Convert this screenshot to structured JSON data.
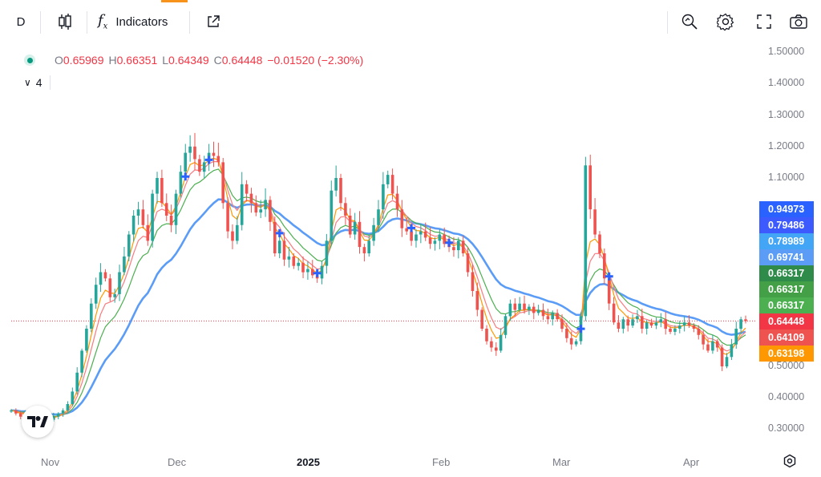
{
  "toolbar": {
    "interval": "D",
    "indicators_label": "Indicators",
    "icons": [
      "candles-icon",
      "fx-icon",
      "external-link-icon",
      "zoom-icon",
      "gear-icon",
      "fullscreen-icon",
      "camera-icon"
    ]
  },
  "legend": {
    "open_key": "O",
    "open": "0.65969",
    "high_key": "H",
    "high": "0.66351",
    "low_key": "L",
    "low": "0.64349",
    "close_key": "C",
    "close": "0.64448",
    "change": "−0.01520 (−2.30%)",
    "indicators_count": "4"
  },
  "price_tags": [
    {
      "value": "0.94973",
      "color": "#2962ff"
    },
    {
      "value": "0.79486",
      "color": "#3d5afe"
    },
    {
      "value": "0.78989",
      "color": "#42a5f5"
    },
    {
      "value": "0.69741",
      "color": "#5b9cf6"
    },
    {
      "value": "0.66317",
      "color": "#2e8b4a"
    },
    {
      "value": "0.66317",
      "color": "#43a047"
    },
    {
      "value": "0.66317",
      "color": "#4caf50"
    },
    {
      "value": "0.64448",
      "color": "#f23645"
    },
    {
      "value": "0.64109",
      "color": "#ef5350"
    },
    {
      "value": "0.63198",
      "color": "#ff9800"
    }
  ],
  "chart_data": {
    "type": "candlestick",
    "y_axis_labels": [
      "1.50000",
      "1.40000",
      "1.30000",
      "1.20000",
      "1.10000",
      "0.50000",
      "0.40000",
      "0.30000"
    ],
    "x_axis_labels": [
      "Nov",
      "Dec",
      "2025",
      "Feb",
      "Mar",
      "Apr"
    ],
    "ylim": [
      0.27,
      1.52
    ],
    "last_price": 0.64448,
    "colors": {
      "up": "#26a69a",
      "down": "#ef5350",
      "ma1": "#ff9800",
      "ma2": "#f77c80",
      "ma3": "#4caf50",
      "ma4": "#5b9cf6"
    },
    "closes": [
      0.36,
      0.35,
      0.34,
      0.35,
      0.34,
      0.33,
      0.34,
      0.33,
      0.33,
      0.34,
      0.35,
      0.36,
      0.38,
      0.42,
      0.48,
      0.55,
      0.62,
      0.7,
      0.76,
      0.8,
      0.78,
      0.72,
      0.73,
      0.8,
      0.85,
      0.92,
      0.98,
      1.0,
      0.95,
      0.9,
      1.05,
      1.1,
      1.02,
      0.98,
      0.95,
      1.05,
      1.12,
      1.18,
      1.2,
      1.16,
      1.12,
      1.15,
      1.18,
      1.17,
      1.15,
      1.02,
      0.93,
      0.9,
      0.95,
      1.08,
      1.05,
      1.02,
      0.99,
      1.0,
      1.03,
      0.96,
      0.86,
      0.9,
      0.84,
      0.85,
      0.82,
      0.83,
      0.8,
      0.81,
      0.79,
      0.78,
      0.82,
      0.9,
      1.06,
      1.1,
      1.02,
      0.98,
      0.92,
      0.96,
      0.88,
      0.86,
      0.9,
      0.95,
      1.0,
      1.08,
      1.11,
      1.05,
      1.0,
      0.94,
      0.93,
      0.9,
      0.92,
      0.93,
      0.91,
      0.89,
      0.9,
      0.92,
      0.89,
      0.88,
      0.87,
      0.9,
      0.86,
      0.8,
      0.74,
      0.68,
      0.62,
      0.58,
      0.56,
      0.55,
      0.6,
      0.66,
      0.7,
      0.68,
      0.7,
      0.68,
      0.69,
      0.67,
      0.68,
      0.66,
      0.65,
      0.67,
      0.65,
      0.62,
      0.59,
      0.57,
      0.58,
      0.66,
      1.14,
      1.0,
      0.92,
      0.86,
      0.78,
      0.7,
      0.64,
      0.62,
      0.65,
      0.63,
      0.65,
      0.66,
      0.62,
      0.64,
      0.63,
      0.64,
      0.65,
      0.62,
      0.61,
      0.62,
      0.63,
      0.64,
      0.63,
      0.62,
      0.6,
      0.57,
      0.55,
      0.58,
      0.56,
      0.5,
      0.53,
      0.57,
      0.62,
      0.65,
      0.64448
    ],
    "markers_note": "blue cross markers at MA crossovers"
  },
  "watermark": "TradingView logo"
}
